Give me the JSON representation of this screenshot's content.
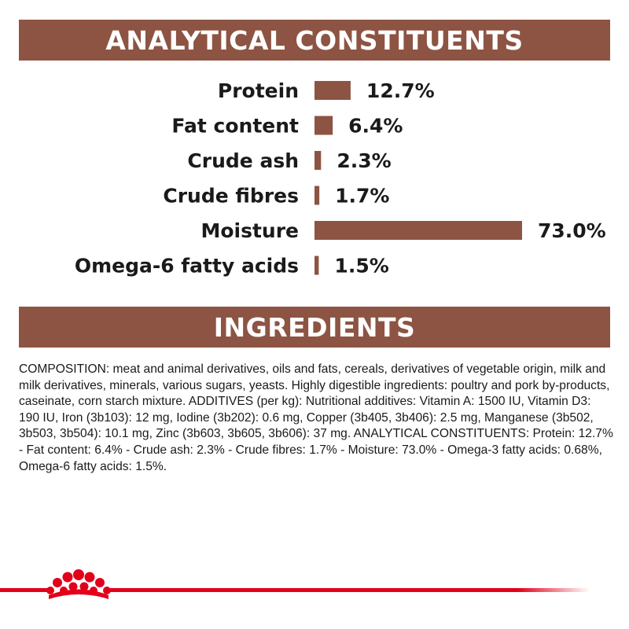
{
  "analytical_header": "ANALYTICAL CONSTITUENTS",
  "ingredients_header": "INGREDIENTS",
  "chart_data": {
    "type": "bar",
    "orientation": "horizontal",
    "categories": [
      "Protein",
      "Fat content",
      "Crude ash",
      "Crude fibres",
      "Moisture",
      "Omega-6 fatty acids"
    ],
    "values": [
      12.7,
      6.4,
      2.3,
      1.7,
      73.0,
      1.5
    ],
    "value_labels": [
      "12.7%",
      "6.4%",
      "2.3%",
      "1.7%",
      "73.0%",
      "1.5%"
    ],
    "unit": "%",
    "xlim": [
      0,
      73.0
    ],
    "grid": false,
    "bar_color": "#8d5443"
  },
  "composition_text": "COMPOSITION: meat and animal derivatives, oils and fats, cereals, derivatives of vegetable origin, milk and milk derivatives, minerals, various sugars, yeasts. Highly digestible ingredients: poultry and pork by-products, caseinate, corn starch mixture. ADDITIVES (per kg): Nutritional additives: Vitamin A: 1500 IU, Vitamin D3: 190 IU, Iron (3b103): 12 mg, Iodine (3b202): 0.6 mg, Copper (3b405, 3b406): 2.5 mg, Manganese (3b502, 3b503, 3b504): 10.1 mg, Zinc (3b603, 3b605, 3b606): 37 mg. ANALYTICAL CONSTITUENTS: Protein: 12.7% - Fat content: 6.4% - Crude ash: 2.3% - Crude fibres: 1.7% - Moisture: 73.0% - Omega-3 fatty acids: 0.68%, Omega-6 fatty acids: 1.5%.",
  "colors": {
    "banner": "#8d5443",
    "brand_red": "#e2001a"
  },
  "logo": "royal-canin-crown-icon"
}
